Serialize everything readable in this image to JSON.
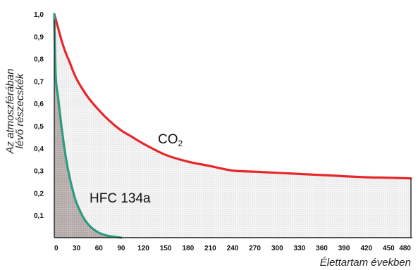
{
  "chart_data": {
    "type": "line",
    "title": "",
    "ylabel_lines": [
      "Az atmoszférában",
      "lévő részecskék"
    ],
    "xlabel": "Élettartam években",
    "xlim": [
      0,
      480
    ],
    "ylim": [
      0,
      1.0
    ],
    "x_ticks": [
      "0",
      "30",
      "60",
      "90",
      "120",
      "150",
      "180",
      "210",
      "240",
      "270",
      "300",
      "330",
      "360",
      "390",
      "420",
      "450",
      "480"
    ],
    "y_ticks": [
      "0,1",
      "0,2",
      "0,3",
      "0,4",
      "0,5",
      "0,6",
      "0,7",
      "0,8",
      "0,9",
      "1,0"
    ],
    "series": [
      {
        "name": "CO₂",
        "label_main": "CO",
        "label_sub": "2",
        "color": "#e8262a",
        "fill": "#ececec",
        "x": [
          0,
          5,
          10,
          15,
          20,
          30,
          45,
          60,
          75,
          90,
          105,
          120,
          150,
          180,
          210,
          240,
          270,
          300,
          330,
          360,
          390,
          420,
          450,
          480
        ],
        "y": [
          1.0,
          0.94,
          0.88,
          0.83,
          0.79,
          0.71,
          0.63,
          0.57,
          0.52,
          0.48,
          0.45,
          0.42,
          0.37,
          0.34,
          0.32,
          0.3,
          0.295,
          0.29,
          0.285,
          0.28,
          0.275,
          0.27,
          0.268,
          0.265
        ]
      },
      {
        "name": "HFC 134a",
        "label_main": "HFC 134a",
        "label_sub": "",
        "color": "#2f9a82",
        "fill": "#b8aeae",
        "x": [
          0,
          2,
          5,
          10,
          15,
          20,
          25,
          30,
          40,
          50,
          60,
          70,
          80,
          90
        ],
        "y": [
          1.0,
          0.72,
          0.63,
          0.49,
          0.37,
          0.28,
          0.21,
          0.155,
          0.085,
          0.045,
          0.022,
          0.01,
          0.004,
          0.0
        ]
      }
    ],
    "grid": false,
    "legend": "none"
  }
}
